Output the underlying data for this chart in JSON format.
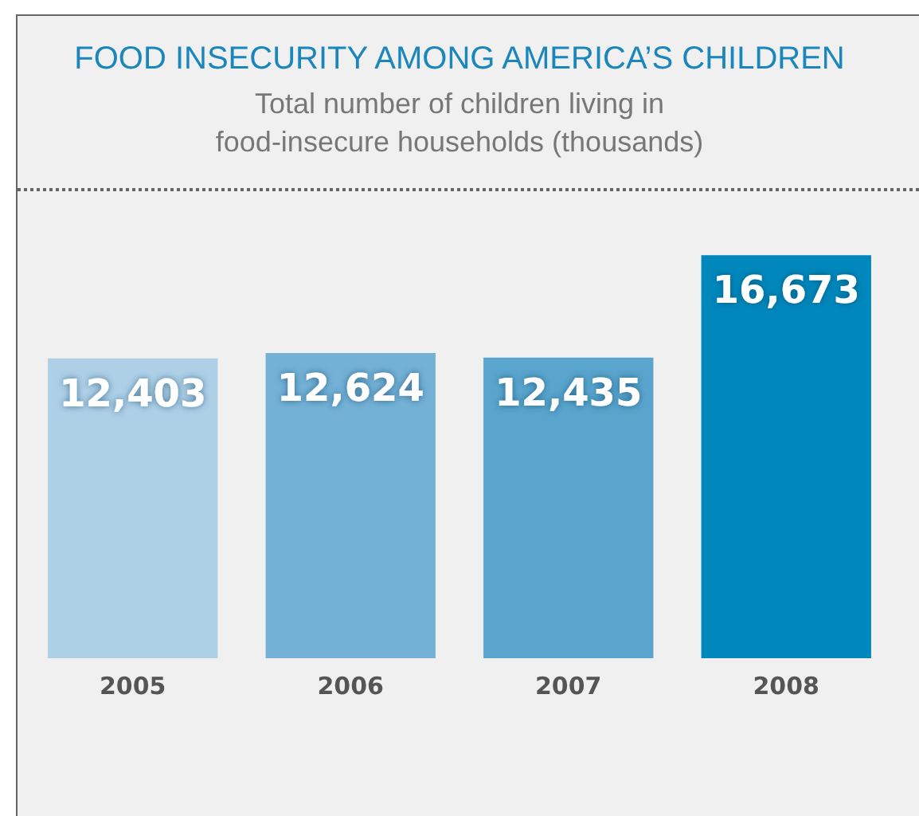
{
  "chart_data": {
    "type": "bar",
    "title": "FOOD INSECURITY AMONG AMERICA’S CHILDREN",
    "subtitle": "Total number of children living in\nfood-insecure households (thousands)",
    "categories": [
      "2005",
      "2006",
      "2007",
      "2008"
    ],
    "values": [
      12403,
      12624,
      12435,
      16673
    ],
    "colors": [
      "#aed0e7",
      "#74b1d6",
      "#59a5cd",
      "#0088bc"
    ],
    "value_labels": [
      "12,403",
      "12,624",
      "12,435",
      "16,673"
    ]
  }
}
